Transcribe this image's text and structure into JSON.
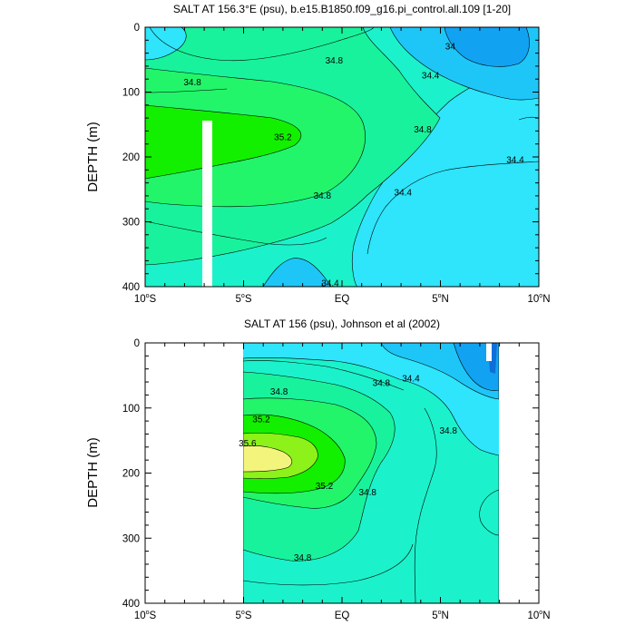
{
  "chart_data": [
    {
      "type": "contour",
      "title": "SALT AT 156.3°E (psu), b.e15.B1850.f09_g16.pi_control.all.109 [1-20]",
      "ylabel": "DEPTH (m)",
      "xlim": [
        -10,
        10
      ],
      "ylim": [
        400,
        0
      ],
      "x_ticks": [
        "10°S",
        "5°S",
        "EQ",
        "5°N",
        "10°N"
      ],
      "y_ticks": [
        "0",
        "100",
        "200",
        "300",
        "400"
      ],
      "contour_labels": [
        {
          "text": "34",
          "x": 5.5,
          "y": 30
        },
        {
          "text": "34.8",
          "x": -0.4,
          "y": 52
        },
        {
          "text": "34.4",
          "x": 4.5,
          "y": 75
        },
        {
          "text": "34.8",
          "x": -7.6,
          "y": 85
        },
        {
          "text": "34.8",
          "x": 4.1,
          "y": 158
        },
        {
          "text": "35.2",
          "x": -3.0,
          "y": 170
        },
        {
          "text": "34.4",
          "x": 8.8,
          "y": 205
        },
        {
          "text": "34.4",
          "x": 3.1,
          "y": 255
        },
        {
          "text": "34.8",
          "x": -1.0,
          "y": 260
        },
        {
          "text": "34.4",
          "x": -0.6,
          "y": 395
        }
      ]
    },
    {
      "type": "contour",
      "title": "SALT AT 156 (psu), Johnson et al (2002)",
      "ylabel": "DEPTH (m)",
      "xlim": [
        -10,
        10
      ],
      "ylim": [
        400,
        0
      ],
      "x_ticks": [
        "10°S",
        "5°S",
        "EQ",
        "5°N",
        "10°N"
      ],
      "y_ticks": [
        "0",
        "100",
        "200",
        "300",
        "400"
      ],
      "data_extent_x": [
        -5,
        8
      ],
      "contour_labels": [
        {
          "text": "34.4",
          "x": 3.5,
          "y": 55
        },
        {
          "text": "34.8",
          "x": -3.2,
          "y": 75
        },
        {
          "text": "34.8",
          "x": 2.0,
          "y": 62
        },
        {
          "text": "34.8",
          "x": 5.4,
          "y": 135
        },
        {
          "text": "35.2",
          "x": -4.1,
          "y": 118
        },
        {
          "text": "35.6",
          "x": -4.8,
          "y": 155
        },
        {
          "text": "35.2",
          "x": -0.9,
          "y": 220
        },
        {
          "text": "34.8",
          "x": 1.3,
          "y": 230
        },
        {
          "text": "34.8",
          "x": -2.0,
          "y": 330
        }
      ]
    }
  ],
  "colors": {
    "fill_lowest": "#0e6fd8",
    "fill_34": "#12a2f2",
    "fill_34_2": "#1ec6f8",
    "fill_34_4": "#2ee5fb",
    "fill_34_6": "#1bf2cb",
    "fill_34_8": "#19f29c",
    "fill_35": "#22f56a",
    "fill_35_2": "#12f000",
    "fill_35_4": "#8cf21a",
    "fill_35_6": "#f3f47c",
    "mask": "#ffffff"
  }
}
